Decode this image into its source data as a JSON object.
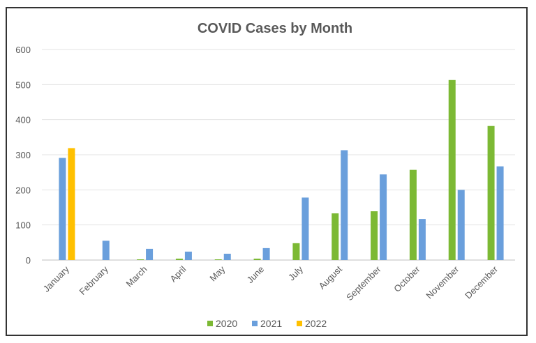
{
  "chart_data": {
    "type": "bar",
    "title": "COVID Cases by Month",
    "xlabel": "",
    "ylabel": "",
    "ylim": [
      0,
      600
    ],
    "yticks": [
      0,
      100,
      200,
      300,
      400,
      500,
      600
    ],
    "grid": true,
    "legend_position": "bottom",
    "categories": [
      "January",
      "February",
      "March",
      "April",
      "May",
      "June",
      "July",
      "August",
      "September",
      "October",
      "November",
      "December"
    ],
    "series": [
      {
        "name": "2020",
        "color": "#7cb934",
        "values": [
          null,
          null,
          2,
          4,
          2,
          4,
          48,
          133,
          139,
          257,
          513,
          382
        ]
      },
      {
        "name": "2021",
        "color": "#6a9fdc",
        "values": [
          291,
          55,
          32,
          24,
          18,
          34,
          178,
          313,
          244,
          117,
          200,
          267
        ]
      },
      {
        "name": "2022",
        "color": "#ffc000",
        "values": [
          319,
          null,
          null,
          null,
          null,
          null,
          null,
          null,
          null,
          null,
          null,
          null
        ]
      }
    ]
  }
}
